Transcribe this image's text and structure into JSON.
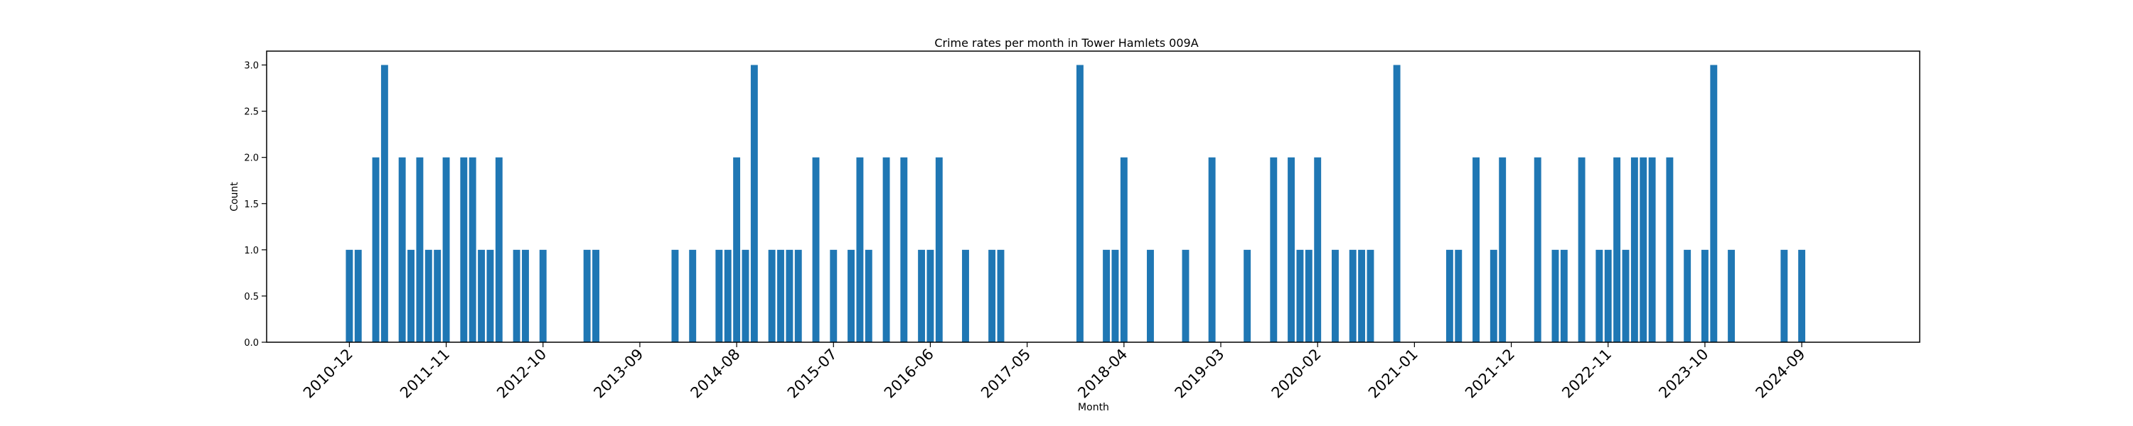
{
  "chart_data": {
    "type": "bar",
    "title": "Crime rates per month in Tower Hamlets 009A",
    "xlabel": "Month",
    "ylabel": "Count",
    "ylim": [
      0,
      3.15
    ],
    "yticks": [
      0.0,
      0.5,
      1.0,
      1.5,
      2.0,
      2.5,
      3.0
    ],
    "ytick_labels": [
      "0.0",
      "0.5",
      "1.0",
      "1.5",
      "2.0",
      "2.5",
      "3.0"
    ],
    "xtick_labels": [
      "2010-12",
      "2011-11",
      "2012-10",
      "2013-09",
      "2014-08",
      "2015-07",
      "2016-06",
      "2017-05",
      "2018-04",
      "2019-03",
      "2020-02",
      "2021-01",
      "2021-12",
      "2022-11",
      "2023-10",
      "2024-09"
    ],
    "xtick_positions": [
      0,
      11,
      22,
      33,
      44,
      55,
      66,
      77,
      88,
      99,
      110,
      121,
      132,
      143,
      154,
      165
    ],
    "bar_color": "#1f77b4",
    "grid": false,
    "categories": [
      "2010-12",
      "2011-01",
      "2011-03",
      "2011-04",
      "2011-06",
      "2011-07",
      "2011-08",
      "2011-09",
      "2011-10",
      "2011-11",
      "2012-01",
      "2012-02",
      "2012-03",
      "2012-04",
      "2012-05",
      "2012-07",
      "2012-08",
      "2012-10",
      "2013-03",
      "2013-04",
      "2014-01",
      "2014-03",
      "2014-06",
      "2014-07",
      "2014-08",
      "2014-09",
      "2014-10",
      "2014-12",
      "2015-01",
      "2015-02",
      "2015-03",
      "2015-05",
      "2015-07",
      "2015-09",
      "2015-10",
      "2015-11",
      "2016-01",
      "2016-03",
      "2016-05",
      "2016-06",
      "2016-07",
      "2016-10",
      "2017-01",
      "2017-02",
      "2017-11",
      "2018-02",
      "2018-03",
      "2018-04",
      "2018-07",
      "2018-11",
      "2019-02",
      "2019-06",
      "2019-09",
      "2019-11",
      "2019-12",
      "2020-01",
      "2020-02",
      "2020-04",
      "2020-06",
      "2020-07",
      "2020-08",
      "2020-11",
      "2021-05",
      "2021-06",
      "2021-08",
      "2021-10",
      "2021-11",
      "2022-03",
      "2022-05",
      "2022-06",
      "2022-08",
      "2022-10",
      "2022-11",
      "2022-12",
      "2023-01",
      "2023-02",
      "2023-03",
      "2023-04",
      "2023-06",
      "2023-08",
      "2023-10",
      "2023-11",
      "2024-01",
      "2024-07",
      "2024-09"
    ],
    "x": [
      0,
      1,
      3,
      4,
      6,
      7,
      8,
      9,
      10,
      11,
      13,
      14,
      15,
      16,
      17,
      19,
      20,
      22,
      27,
      28,
      37,
      39,
      42,
      43,
      44,
      45,
      46,
      48,
      49,
      50,
      51,
      53,
      55,
      57,
      58,
      59,
      61,
      63,
      65,
      66,
      67,
      70,
      73,
      74,
      83,
      86,
      87,
      88,
      91,
      95,
      98,
      102,
      105,
      107,
      108,
      109,
      110,
      112,
      114,
      115,
      116,
      119,
      125,
      126,
      128,
      130,
      131,
      135,
      137,
      138,
      140,
      142,
      143,
      144,
      145,
      146,
      147,
      148,
      150,
      152,
      154,
      155,
      157,
      163,
      165
    ],
    "values": [
      1,
      1,
      2,
      3,
      2,
      1,
      2,
      1,
      1,
      2,
      2,
      2,
      1,
      1,
      2,
      1,
      1,
      1,
      1,
      1,
      1,
      1,
      1,
      1,
      2,
      1,
      3,
      1,
      1,
      1,
      1,
      2,
      1,
      1,
      2,
      1,
      2,
      2,
      1,
      1,
      2,
      1,
      1,
      1,
      3,
      1,
      1,
      2,
      1,
      1,
      2,
      1,
      2,
      2,
      1,
      1,
      2,
      1,
      1,
      1,
      1,
      3,
      1,
      1,
      2,
      1,
      2,
      2,
      1,
      1,
      2,
      1,
      1,
      2,
      1,
      2,
      2,
      2,
      2,
      1,
      1,
      3,
      1,
      1,
      1
    ],
    "xlim_index": [
      -9.4,
      178.4
    ]
  }
}
